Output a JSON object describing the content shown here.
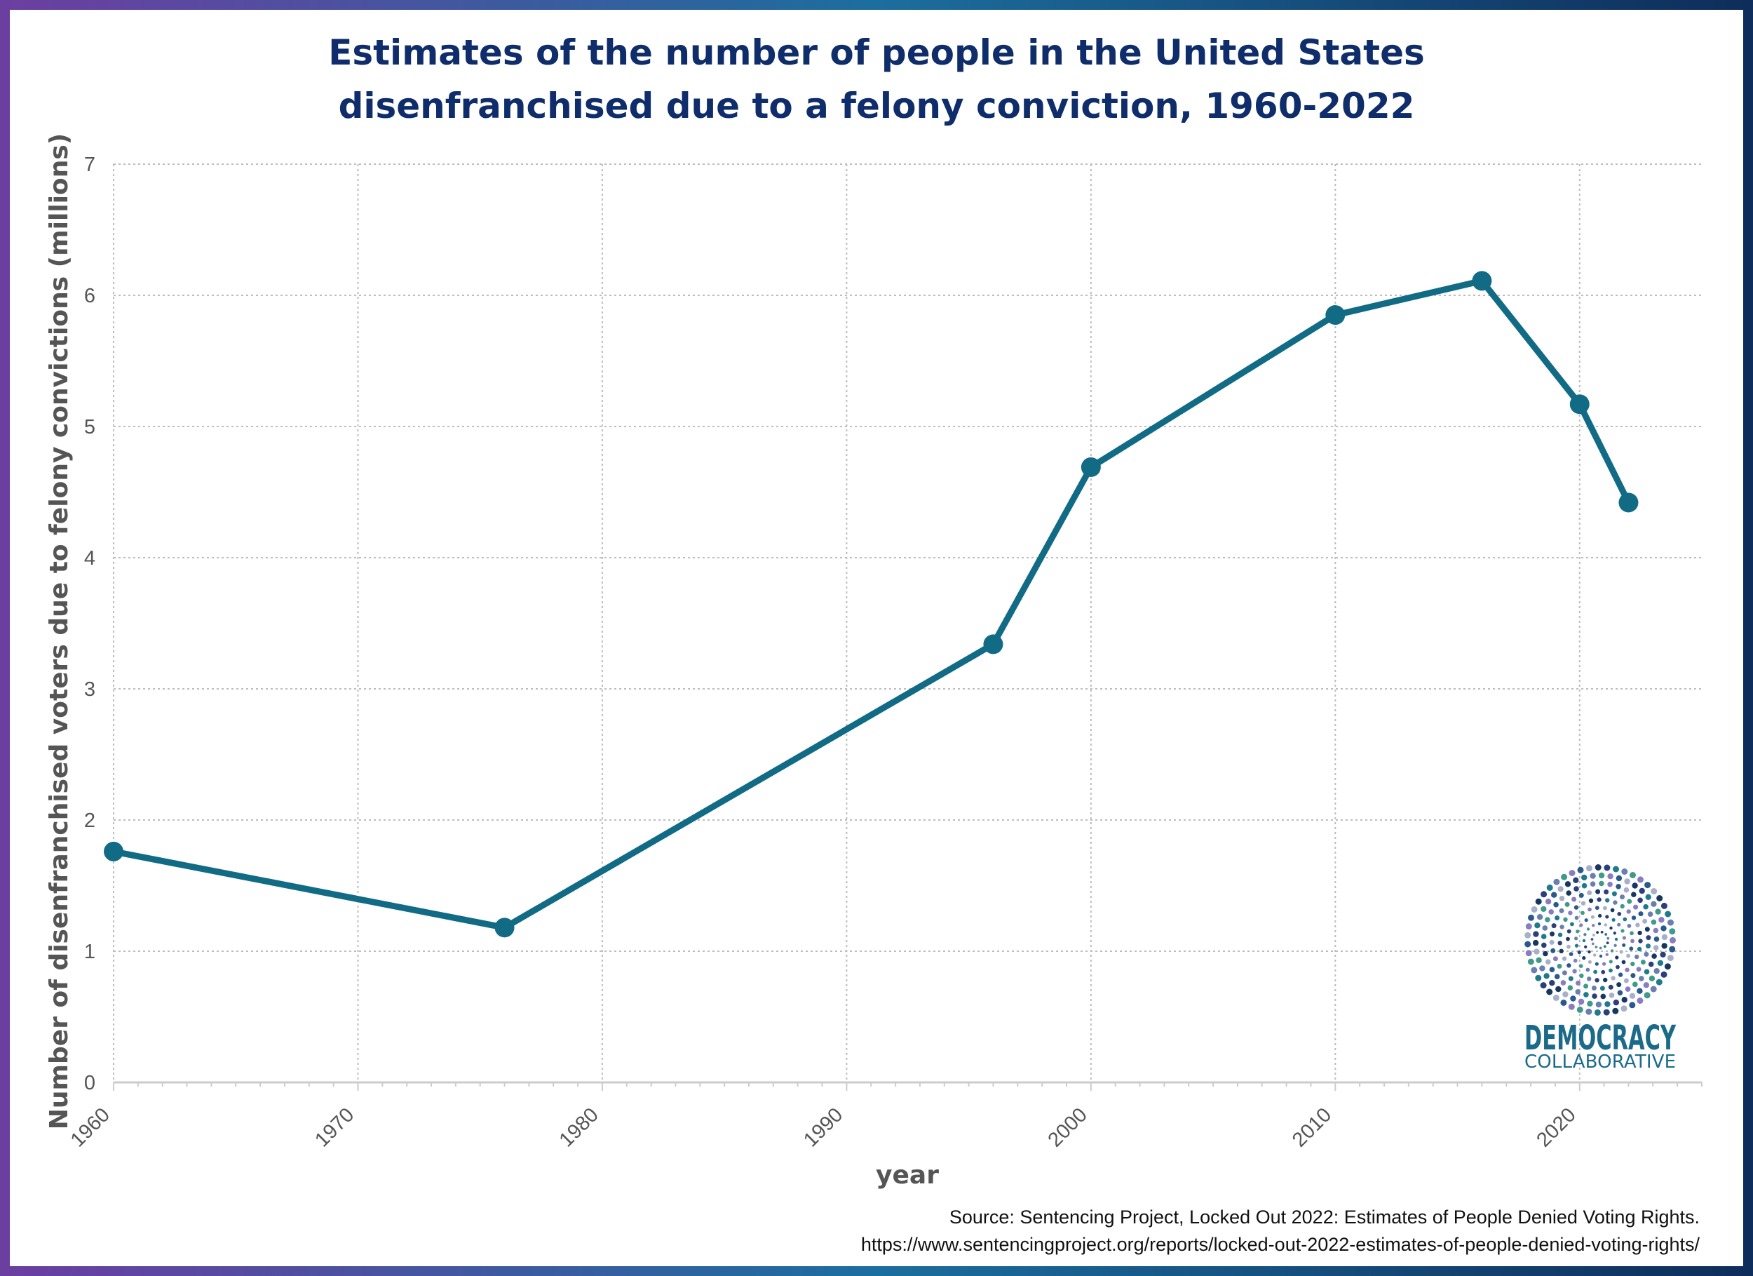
{
  "chart_data": {
    "type": "line",
    "title_lines": [
      "Estimates of the number of people in the United States",
      "disenfranchised due to a felony conviction, 1960-2022"
    ],
    "xlabel": "year",
    "ylabel": "Number of disenfranchised voters due to felony convictions (millions)",
    "xlim": [
      1960,
      2025
    ],
    "ylim": [
      0,
      7
    ],
    "x_ticks": [
      1960,
      1970,
      1980,
      1990,
      2000,
      2010,
      2020
    ],
    "y_ticks": [
      0,
      1,
      2,
      3,
      4,
      5,
      6,
      7
    ],
    "grid": true,
    "series": [
      {
        "x": [
          1960,
          1976,
          1996,
          2000,
          2010,
          2016,
          2020,
          2022
        ],
        "values": [
          1.76,
          1.18,
          3.34,
          4.69,
          5.85,
          6.11,
          5.17,
          4.42
        ]
      }
    ],
    "line_color": "#126b85"
  },
  "source": {
    "line1": "Source: Sentencing Project, Locked Out 2022: Estimates of People Denied Voting Rights.",
    "line2": "https://www.sentencingproject.org/reports/locked-out-2022-estimates-of-people-denied-voting-rights/"
  },
  "logo": {
    "line1": "DEMOCRACY",
    "line2": "COLLABORATIVE"
  },
  "colors": {
    "frame_start": "#6b3fa0",
    "frame_mid": "#1c6e9e",
    "frame_end": "#0f2d5a",
    "title": "#0f2d6b"
  }
}
